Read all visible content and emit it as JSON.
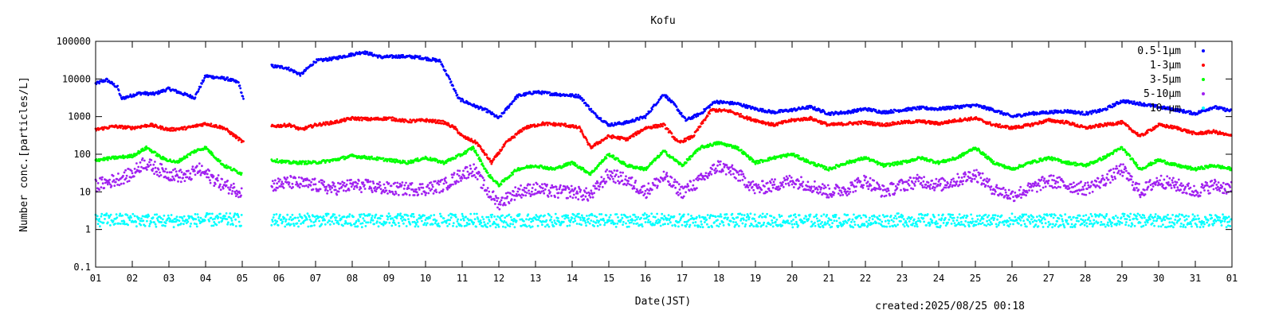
{
  "chart_data": {
    "type": "scatter",
    "title": "Kofu",
    "xlabel": "Date(JST)",
    "ylabel": "Number conc.[particles/L]",
    "yscale": "log",
    "ylim": [
      0.1,
      100000
    ],
    "xlim": [
      1,
      32
    ],
    "y_ticks": [
      "0.1",
      "1",
      "10",
      "100",
      "1000",
      "10000",
      "100000"
    ],
    "x_ticks": [
      "01",
      "02",
      "03",
      "04",
      "05",
      "06",
      "07",
      "08",
      "09",
      "10",
      "11",
      "12",
      "13",
      "14",
      "15",
      "16",
      "17",
      "18",
      "19",
      "20",
      "21",
      "22",
      "23",
      "24",
      "25",
      "26",
      "27",
      "28",
      "29",
      "30",
      "31",
      "01"
    ],
    "footer": "created:2025/08/25 00:18",
    "legend_position": "top-right",
    "series": [
      {
        "name": "0.5-1μm",
        "color": "#0000ff",
        "points": [
          [
            1,
            7500
          ],
          [
            1.3,
            9500
          ],
          [
            1.6,
            6000
          ],
          [
            1.7,
            3000
          ],
          [
            2.2,
            4200
          ],
          [
            2.6,
            4000
          ],
          [
            3.0,
            5500
          ],
          [
            3.4,
            4000
          ],
          [
            3.7,
            3200
          ],
          [
            4.0,
            12000
          ],
          [
            4.3,
            11000
          ],
          [
            4.6,
            10000
          ],
          [
            4.9,
            8000
          ],
          [
            5.05,
            2500
          ],
          [
            5.8,
            22000
          ],
          [
            6.2,
            20000
          ],
          [
            6.6,
            13000
          ],
          [
            7.0,
            30000
          ],
          [
            7.5,
            35000
          ],
          [
            8.0,
            45000
          ],
          [
            8.3,
            52000
          ],
          [
            8.8,
            38000
          ],
          [
            9.3,
            40000
          ],
          [
            9.8,
            38000
          ],
          [
            10.4,
            30000
          ],
          [
            10.7,
            8000
          ],
          [
            10.9,
            3000
          ],
          [
            11.3,
            2000
          ],
          [
            11.7,
            1400
          ],
          [
            12.0,
            900
          ],
          [
            12.5,
            3500
          ],
          [
            13.0,
            4500
          ],
          [
            13.5,
            4000
          ],
          [
            14.2,
            3500
          ],
          [
            14.6,
            1200
          ],
          [
            15.0,
            600
          ],
          [
            15.5,
            700
          ],
          [
            16.0,
            1000
          ],
          [
            16.5,
            4000
          ],
          [
            16.8,
            2000
          ],
          [
            17.1,
            800
          ],
          [
            17.5,
            1200
          ],
          [
            17.9,
            2500
          ],
          [
            18.5,
            2200
          ],
          [
            19.0,
            1600
          ],
          [
            19.5,
            1300
          ],
          [
            20.0,
            1500
          ],
          [
            20.5,
            1800
          ],
          [
            21.0,
            1200
          ],
          [
            21.5,
            1300
          ],
          [
            22.0,
            1600
          ],
          [
            22.5,
            1300
          ],
          [
            23.0,
            1500
          ],
          [
            23.5,
            1700
          ],
          [
            24.0,
            1600
          ],
          [
            24.5,
            1800
          ],
          [
            25.0,
            2000
          ],
          [
            25.5,
            1500
          ],
          [
            26.0,
            1000
          ],
          [
            26.5,
            1200
          ],
          [
            27.0,
            1300
          ],
          [
            27.5,
            1400
          ],
          [
            28.0,
            1200
          ],
          [
            28.5,
            1500
          ],
          [
            29.0,
            2600
          ],
          [
            29.5,
            2200
          ],
          [
            30.0,
            1800
          ],
          [
            30.5,
            1500
          ],
          [
            31.0,
            1200
          ],
          [
            31.5,
            1800
          ],
          [
            32.0,
            1400
          ]
        ]
      },
      {
        "name": "1-3μm",
        "color": "#ff0000",
        "points": [
          [
            1,
            450
          ],
          [
            1.5,
            550
          ],
          [
            2.0,
            500
          ],
          [
            2.5,
            600
          ],
          [
            3.0,
            450
          ],
          [
            3.5,
            500
          ],
          [
            4.0,
            650
          ],
          [
            4.5,
            500
          ],
          [
            5.05,
            200
          ],
          [
            5.8,
            550
          ],
          [
            6.3,
            600
          ],
          [
            6.6,
            450
          ],
          [
            7.0,
            600
          ],
          [
            7.5,
            700
          ],
          [
            8.0,
            900
          ],
          [
            8.5,
            850
          ],
          [
            9.0,
            900
          ],
          [
            9.5,
            750
          ],
          [
            10.0,
            800
          ],
          [
            10.5,
            700
          ],
          [
            10.8,
            500
          ],
          [
            11.0,
            300
          ],
          [
            11.4,
            200
          ],
          [
            11.8,
            60
          ],
          [
            12.2,
            200
          ],
          [
            12.7,
            500
          ],
          [
            13.2,
            650
          ],
          [
            13.8,
            600
          ],
          [
            14.2,
            500
          ],
          [
            14.5,
            150
          ],
          [
            15.0,
            300
          ],
          [
            15.5,
            250
          ],
          [
            16.0,
            500
          ],
          [
            16.5,
            600
          ],
          [
            16.9,
            200
          ],
          [
            17.3,
            300
          ],
          [
            17.8,
            1500
          ],
          [
            18.3,
            1400
          ],
          [
            18.8,
            900
          ],
          [
            19.5,
            600
          ],
          [
            20.0,
            800
          ],
          [
            20.5,
            900
          ],
          [
            21.0,
            600
          ],
          [
            21.5,
            650
          ],
          [
            22.0,
            700
          ],
          [
            22.5,
            600
          ],
          [
            23.0,
            700
          ],
          [
            23.5,
            750
          ],
          [
            24.0,
            650
          ],
          [
            24.5,
            800
          ],
          [
            25.0,
            900
          ],
          [
            25.5,
            600
          ],
          [
            26.0,
            500
          ],
          [
            26.5,
            600
          ],
          [
            27.0,
            800
          ],
          [
            27.5,
            700
          ],
          [
            28.0,
            500
          ],
          [
            28.5,
            600
          ],
          [
            29.0,
            700
          ],
          [
            29.5,
            300
          ],
          [
            30.0,
            600
          ],
          [
            30.5,
            500
          ],
          [
            31.0,
            350
          ],
          [
            31.5,
            400
          ],
          [
            32.0,
            300
          ]
        ]
      },
      {
        "name": "3-5μm",
        "color": "#00ff00",
        "points": [
          [
            1,
            70
          ],
          [
            1.5,
            80
          ],
          [
            2.0,
            90
          ],
          [
            2.4,
            150
          ],
          [
            2.8,
            80
          ],
          [
            3.2,
            60
          ],
          [
            3.7,
            120
          ],
          [
            4.0,
            150
          ],
          [
            4.5,
            50
          ],
          [
            5.0,
            30
          ],
          [
            5.8,
            70
          ],
          [
            6.3,
            60
          ],
          [
            7.0,
            60
          ],
          [
            7.5,
            70
          ],
          [
            8.0,
            90
          ],
          [
            8.5,
            80
          ],
          [
            9.0,
            70
          ],
          [
            9.5,
            60
          ],
          [
            10.0,
            80
          ],
          [
            10.5,
            60
          ],
          [
            11.0,
            100
          ],
          [
            11.3,
            150
          ],
          [
            11.7,
            30
          ],
          [
            12.0,
            15
          ],
          [
            12.5,
            40
          ],
          [
            13.0,
            50
          ],
          [
            13.5,
            40
          ],
          [
            14.0,
            60
          ],
          [
            14.5,
            30
          ],
          [
            15.0,
            100
          ],
          [
            15.5,
            50
          ],
          [
            16.0,
            40
          ],
          [
            16.5,
            120
          ],
          [
            17.0,
            50
          ],
          [
            17.5,
            150
          ],
          [
            18.0,
            200
          ],
          [
            18.5,
            150
          ],
          [
            19.0,
            60
          ],
          [
            19.5,
            80
          ],
          [
            20.0,
            100
          ],
          [
            20.5,
            60
          ],
          [
            21.0,
            40
          ],
          [
            21.5,
            60
          ],
          [
            22.0,
            80
          ],
          [
            22.5,
            50
          ],
          [
            23.0,
            60
          ],
          [
            23.5,
            80
          ],
          [
            24.0,
            60
          ],
          [
            24.5,
            80
          ],
          [
            25.0,
            150
          ],
          [
            25.5,
            60
          ],
          [
            26.0,
            40
          ],
          [
            26.5,
            60
          ],
          [
            27.0,
            80
          ],
          [
            27.5,
            60
          ],
          [
            28.0,
            50
          ],
          [
            28.5,
            80
          ],
          [
            29.0,
            150
          ],
          [
            29.5,
            40
          ],
          [
            30.0,
            70
          ],
          [
            30.5,
            50
          ],
          [
            31.0,
            40
          ],
          [
            31.5,
            50
          ],
          [
            32.0,
            40
          ]
        ]
      },
      {
        "name": "5-10μm",
        "color": "#a020f0",
        "points": [
          [
            1,
            15
          ],
          [
            1.5,
            20
          ],
          [
            2.0,
            30
          ],
          [
            2.3,
            60
          ],
          [
            2.7,
            40
          ],
          [
            3.0,
            30
          ],
          [
            3.5,
            25
          ],
          [
            3.8,
            40
          ],
          [
            4.0,
            30
          ],
          [
            4.5,
            15
          ],
          [
            5.0,
            10
          ],
          [
            5.8,
            15
          ],
          [
            6.3,
            18
          ],
          [
            7.0,
            15
          ],
          [
            7.5,
            12
          ],
          [
            8.0,
            15
          ],
          [
            8.5,
            14
          ],
          [
            9.0,
            12
          ],
          [
            9.5,
            12
          ],
          [
            10.0,
            12
          ],
          [
            10.5,
            15
          ],
          [
            11.0,
            30
          ],
          [
            11.3,
            40
          ],
          [
            11.7,
            10
          ],
          [
            12.0,
            5
          ],
          [
            12.5,
            10
          ],
          [
            13.0,
            12
          ],
          [
            13.5,
            10
          ],
          [
            14.0,
            10
          ],
          [
            14.5,
            8
          ],
          [
            15.0,
            30
          ],
          [
            15.5,
            20
          ],
          [
            16.0,
            10
          ],
          [
            16.5,
            25
          ],
          [
            17.0,
            10
          ],
          [
            17.5,
            20
          ],
          [
            18.0,
            50
          ],
          [
            18.5,
            30
          ],
          [
            19.0,
            12
          ],
          [
            19.5,
            15
          ],
          [
            20.0,
            20
          ],
          [
            20.5,
            15
          ],
          [
            21.0,
            10
          ],
          [
            21.5,
            12
          ],
          [
            22.0,
            20
          ],
          [
            22.5,
            10
          ],
          [
            23.0,
            15
          ],
          [
            23.5,
            20
          ],
          [
            24.0,
            15
          ],
          [
            24.5,
            20
          ],
          [
            25.0,
            30
          ],
          [
            25.5,
            12
          ],
          [
            26.0,
            8
          ],
          [
            26.5,
            12
          ],
          [
            27.0,
            20
          ],
          [
            27.5,
            15
          ],
          [
            28.0,
            12
          ],
          [
            28.5,
            20
          ],
          [
            29.0,
            40
          ],
          [
            29.5,
            10
          ],
          [
            30.0,
            20
          ],
          [
            30.5,
            15
          ],
          [
            31.0,
            10
          ],
          [
            31.5,
            15
          ],
          [
            32.0,
            12
          ]
        ]
      },
      {
        "name": "10-μm",
        "color": "#00ffff",
        "points": [
          [
            1,
            1.8
          ],
          [
            2.0,
            1.8
          ],
          [
            3.0,
            1.7
          ],
          [
            4.0,
            1.8
          ],
          [
            5.0,
            1.8
          ],
          [
            5.8,
            1.7
          ],
          [
            7.0,
            1.8
          ],
          [
            8.0,
            1.7
          ],
          [
            9.0,
            1.8
          ],
          [
            10.0,
            1.7
          ],
          [
            11.0,
            1.8
          ],
          [
            12.0,
            1.7
          ],
          [
            13.0,
            1.7
          ],
          [
            14.0,
            1.8
          ],
          [
            15.0,
            1.7
          ],
          [
            16.0,
            1.8
          ],
          [
            17.0,
            1.7
          ],
          [
            18.0,
            1.7
          ],
          [
            19.0,
            1.8
          ],
          [
            20.0,
            1.7
          ],
          [
            21.0,
            1.7
          ],
          [
            22.0,
            1.7
          ],
          [
            23.0,
            1.8
          ],
          [
            24.0,
            1.7
          ],
          [
            25.0,
            1.7
          ],
          [
            26.0,
            1.8
          ],
          [
            27.0,
            1.7
          ],
          [
            28.0,
            1.7
          ],
          [
            29.0,
            1.8
          ],
          [
            30.0,
            1.7
          ],
          [
            31.0,
            1.7
          ],
          [
            32.0,
            1.7
          ]
        ]
      }
    ]
  }
}
